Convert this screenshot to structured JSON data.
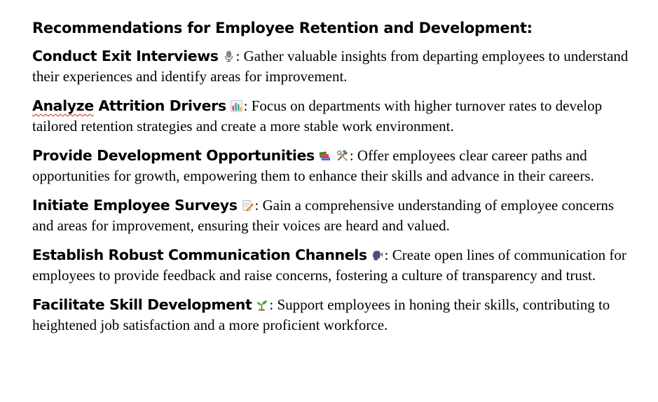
{
  "title": "Recommendations for Employee Retention and Development:",
  "recommendations": [
    {
      "heading": "Conduct Exit Interviews",
      "icons": [
        "microphone-icon"
      ],
      "separator": ":",
      "text": " Gather valuable insights from departing employees to understand their experiences and identify areas for improvement."
    },
    {
      "heading_part1": "Analyze",
      "heading_part2": " Attrition Drivers",
      "icons": [
        "bar-chart-icon"
      ],
      "separator": ":",
      "text": " Focus on departments with higher turnover rates to develop tailored retention strategies and create a more stable work environment."
    },
    {
      "heading": "Provide Development Opportunities",
      "icons": [
        "books-icon",
        "hammer-and-wrench-icon"
      ],
      "separator": ":",
      "text": " Offer employees clear career paths and opportunities for growth, empowering them to enhance their skills and advance in their careers."
    },
    {
      "heading": "Initiate Employee Surveys",
      "icons": [
        "memo-icon"
      ],
      "separator": ":",
      "text": " Gain a comprehensive understanding of employee concerns and areas for improvement, ensuring their voices are heard and valued."
    },
    {
      "heading": "Establish Robust Communication Channels",
      "icons": [
        "speaking-head-icon"
      ],
      "separator": ":",
      "text": " Create open lines of communication for employees to provide feedback and raise concerns, fostering a culture of transparency and trust."
    },
    {
      "heading": "Facilitate Skill Development",
      "icons": [
        "seedling-icon"
      ],
      "separator": ":",
      "text": " Support employees in honing their skills, contributing to heightened job satisfaction and a more proficient workforce."
    }
  ],
  "colors": {
    "text": "#000000",
    "spellcheck_underline": "#d81e1e"
  }
}
